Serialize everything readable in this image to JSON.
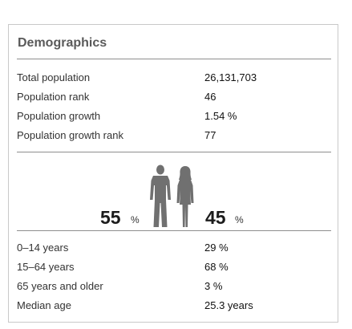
{
  "card": {
    "title": "Demographics"
  },
  "population_stats": [
    {
      "label": "Total population",
      "value": "26,131,703"
    },
    {
      "label": "Population rank",
      "value": "46"
    },
    {
      "label": "Population growth",
      "value": "1.54 %"
    },
    {
      "label": "Population growth rank",
      "value": "77"
    }
  ],
  "gender": {
    "male_percent": "55",
    "female_percent": "45",
    "percent_symbol": "%",
    "male_icon": "male-silhouette-icon",
    "female_icon": "female-silhouette-icon",
    "figure_color": "#707070"
  },
  "age_stats": [
    {
      "label": "0–14 years",
      "value": "29 %"
    },
    {
      "label": "15–64 years",
      "value": "68 %"
    },
    {
      "label": "65 years and older",
      "value": "3 %"
    },
    {
      "label": "Median age",
      "value": "25.3 years"
    }
  ]
}
